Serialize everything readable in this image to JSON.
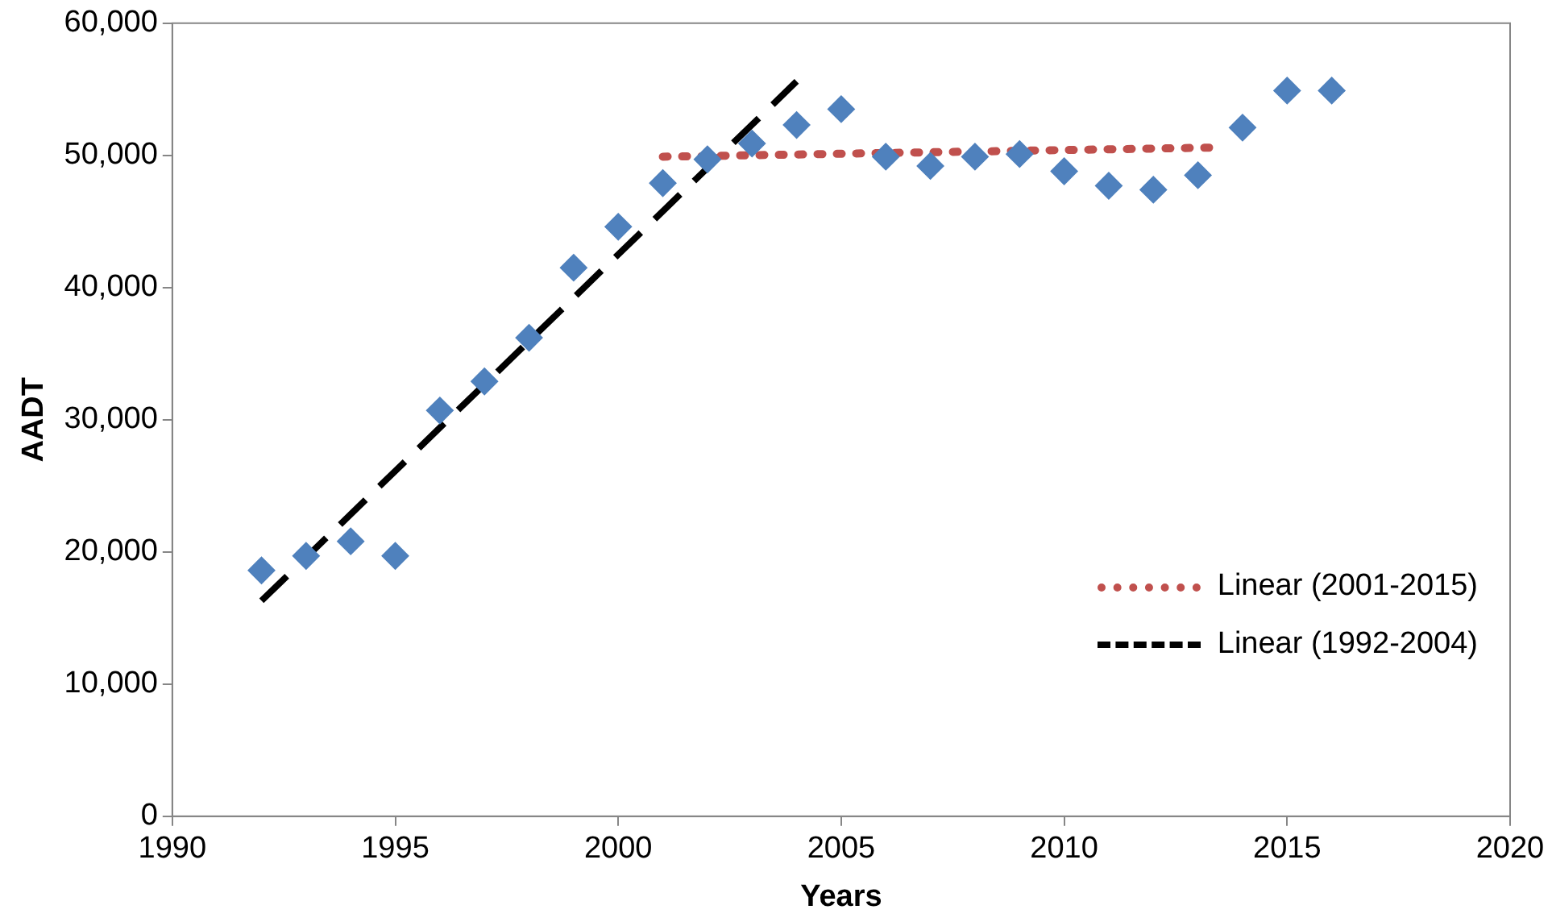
{
  "chart_data": {
    "type": "scatter",
    "xlabel": "Years",
    "ylabel": "AADT",
    "xlim": [
      1990,
      2020
    ],
    "xticks": [
      1990,
      1995,
      2000,
      2005,
      2010,
      2015,
      2020
    ],
    "ylim": [
      0,
      60000
    ],
    "yticks": [
      {
        "value": 0,
        "label": "0"
      },
      {
        "value": 10000,
        "label": "10,000"
      },
      {
        "value": 20000,
        "label": "20,000"
      },
      {
        "value": 30000,
        "label": "30,000"
      },
      {
        "value": 40000,
        "label": "40,000"
      },
      {
        "value": 50000,
        "label": "50,000"
      },
      {
        "value": 60000,
        "label": "60,000"
      }
    ],
    "grid": false,
    "legend": "right",
    "marker": "diamond",
    "series": [
      {
        "color": "#4f81bd",
        "x": [
          1992,
          1993,
          1994,
          1995,
          1996,
          1997,
          1998,
          1999,
          2000,
          2001,
          2002,
          2003,
          2004,
          2005,
          2006,
          2007,
          2008,
          2009,
          2010,
          2011,
          2012,
          2013,
          2014,
          2015,
          2016
        ],
        "values": [
          18600,
          19700,
          20800,
          19700,
          30700,
          32900,
          36200,
          41500,
          44600,
          47900,
          49700,
          50900,
          52300,
          53500,
          49900,
          49200,
          49900,
          50100,
          48800,
          47700,
          47400,
          48500,
          52100,
          54900,
          54900
        ]
      },
      {
        "type": "line",
        "name": "Linear (2001-2015)",
        "color": "#c0504d",
        "line_style": "dotted",
        "marker": "none",
        "x": [
          2001,
          2013.5
        ],
        "values": [
          49900,
          50600
        ]
      },
      {
        "type": "line",
        "name": "Linear (1992-2004)",
        "color": "#000000",
        "line_style": "dashed",
        "marker": "none",
        "x": [
          1992,
          2004
        ],
        "values": [
          16300,
          55600
        ]
      }
    ]
  }
}
